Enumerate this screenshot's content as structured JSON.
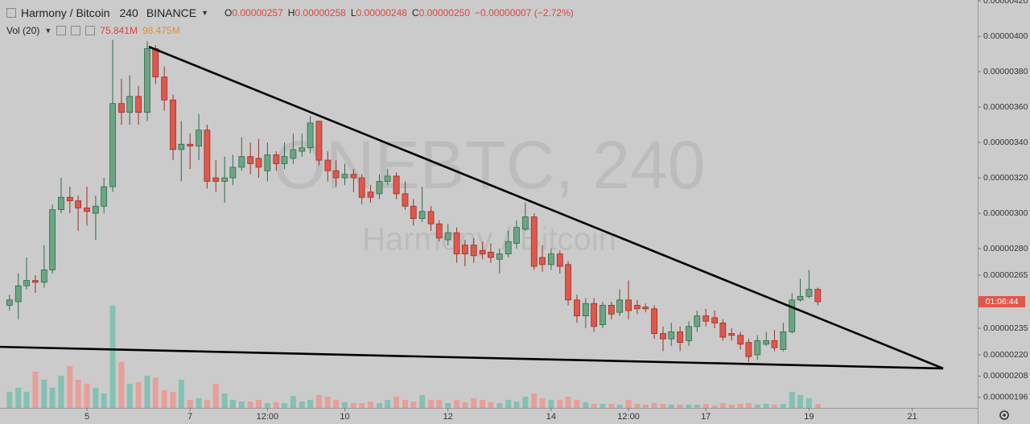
{
  "header": {
    "symbol": "Harmony / Bitcoin",
    "interval": "240",
    "exchange": "BINANCE",
    "ohlc": [
      {
        "key": "O",
        "value": "0.00000257"
      },
      {
        "key": "H",
        "value": "0.00000258"
      },
      {
        "key": "L",
        "value": "0.00000248"
      },
      {
        "key": "C",
        "value": "0.00000250"
      }
    ],
    "change": "−0.00000007 (−2.72%)"
  },
  "volume_legend": {
    "title": "Vol (20)",
    "last": "75.841M",
    "ma": "98.475M"
  },
  "price_tag": "01:06:44",
  "chart_data": {
    "type": "candlestick",
    "watermark": {
      "title": "ONEBTC, 240",
      "subtitle": "Harmony / Bitcoin"
    },
    "x": [
      3.5,
      3.67,
      3.83,
      4,
      4.17,
      4.33,
      4.5,
      4.67,
      4.83,
      5,
      5.17,
      5.33,
      5.5,
      5.67,
      5.83,
      6,
      6.17,
      6.33,
      6.5,
      6.67,
      6.83,
      7,
      7.17,
      7.33,
      7.5,
      7.67,
      7.83,
      8,
      8.17,
      8.33,
      8.5,
      8.67,
      8.83,
      9,
      9.17,
      9.33,
      9.5,
      9.67,
      9.83,
      10,
      10.17,
      10.33,
      10.5,
      10.67,
      10.83,
      11,
      11.17,
      11.33,
      11.5,
      11.67,
      11.83,
      12,
      12.17,
      12.33,
      12.5,
      12.67,
      12.83,
      13,
      13.17,
      13.33,
      13.5,
      13.67,
      13.83,
      14,
      14.17,
      14.33,
      14.5,
      14.67,
      14.83,
      15,
      15.17,
      15.33,
      15.5,
      15.67,
      15.83,
      16,
      16.17,
      16.33,
      16.5,
      16.67,
      16.83,
      17,
      17.17,
      17.33,
      17.5,
      17.67,
      17.83,
      18,
      18.17,
      18.33,
      18.5,
      18.67,
      18.83,
      19,
      19.17
    ],
    "open": [
      2.48e-06,
      2.5e-06,
      2.59e-06,
      2.62e-06,
      2.61e-06,
      2.68e-06,
      3.02e-06,
      3.09e-06,
      3.07e-06,
      3.03e-06,
      3e-06,
      3.04e-06,
      3.15e-06,
      3.62e-06,
      3.57e-06,
      3.66e-06,
      3.57e-06,
      3.93e-06,
      3.77e-06,
      3.64e-06,
      3.36e-06,
      3.39e-06,
      3.38e-06,
      3.47e-06,
      3.2e-06,
      3.18e-06,
      3.2e-06,
      3.26e-06,
      3.32e-06,
      3.31e-06,
      3.24e-06,
      3.33e-06,
      3.28e-06,
      3.31e-06,
      3.35e-06,
      3.37e-06,
      3.52e-06,
      3.3e-06,
      3.24e-06,
      3.2e-06,
      3.22e-06,
      3.2e-06,
      3.12e-06,
      3.11e-06,
      3.18e-06,
      3.21e-06,
      3.11e-06,
      3.04e-06,
      2.97e-06,
      3.01e-06,
      2.94e-06,
      2.85e-06,
      2.89e-06,
      2.82e-06,
      2.82e-06,
      2.79e-06,
      2.78e-06,
      2.74e-06,
      2.77e-06,
      2.83e-06,
      2.91e-06,
      2.98e-06,
      2.75e-06,
      2.71e-06,
      2.77e-06,
      2.71e-06,
      2.51e-06,
      2.42e-06,
      2.49e-06,
      2.37e-06,
      2.48e-06,
      2.44e-06,
      2.51e-06,
      2.48e-06,
      2.47e-06,
      2.46e-06,
      2.32e-06,
      2.29e-06,
      2.33e-06,
      2.28e-06,
      2.36e-06,
      2.42e-06,
      2.41e-06,
      2.38e-06,
      2.32e-06,
      2.31e-06,
      2.27e-06,
      2.2e-06,
      2.26e-06,
      2.28e-06,
      2.23e-06,
      2.33e-06,
      2.51e-06,
      2.53e-06,
      2.57e-06
    ],
    "high": [
      2.54e-06,
      2.66e-06,
      2.75e-06,
      2.65e-06,
      2.82e-06,
      3.05e-06,
      3.2e-06,
      3.15e-06,
      3.1e-06,
      3.15e-06,
      3.1e-06,
      3.2e-06,
      3.98e-06,
      3.76e-06,
      3.78e-06,
      3.72e-06,
      3.97e-06,
      3.95e-06,
      3.83e-06,
      3.67e-06,
      3.52e-06,
      3.45e-06,
      3.56e-06,
      3.5e-06,
      3.3e-06,
      3.32e-06,
      3.33e-06,
      3.43e-06,
      3.4e-06,
      3.42e-06,
      3.4e-06,
      3.35e-06,
      3.4e-06,
      3.45e-06,
      3.45e-06,
      3.55e-06,
      3.52e-06,
      3.35e-06,
      3.3e-06,
      3.28e-06,
      3.25e-06,
      3.22e-06,
      3.16e-06,
      3.22e-06,
      3.25e-06,
      3.23e-06,
      3.18e-06,
      3.08e-06,
      3.15e-06,
      3.04e-06,
      2.96e-06,
      2.94e-06,
      2.92e-06,
      2.85e-06,
      2.86e-06,
      2.84e-06,
      2.83e-06,
      2.8e-06,
      2.9e-06,
      2.96e-06,
      3.06e-06,
      3e-06,
      2.82e-06,
      2.8e-06,
      2.79e-06,
      2.73e-06,
      2.54e-06,
      2.52e-06,
      2.52e-06,
      2.5e-06,
      2.5e-06,
      2.57e-06,
      2.62e-06,
      2.51e-06,
      2.49e-06,
      2.48e-06,
      2.36e-06,
      2.38e-06,
      2.36e-06,
      2.39e-06,
      2.45e-06,
      2.46e-06,
      2.45e-06,
      2.4e-06,
      2.35e-06,
      2.33e-06,
      2.29e-06,
      2.31e-06,
      2.33e-06,
      2.34e-06,
      2.38e-06,
      2.55e-06,
      2.63e-06,
      2.68e-06,
      2.58e-06
    ],
    "low": [
      2.45e-06,
      2.4e-06,
      2.57e-06,
      2.55e-06,
      2.58e-06,
      2.66e-06,
      3e-06,
      3e-06,
      2.9e-06,
      2.93e-06,
      2.85e-06,
      3e-06,
      3.12e-06,
      3.5e-06,
      3.5e-06,
      3.5e-06,
      3.52e-06,
      3.73e-06,
      3.58e-06,
      3.3e-06,
      3.18e-06,
      3.25e-06,
      3.3e-06,
      3.14e-06,
      3.12e-06,
      3.06e-06,
      3.16e-06,
      3.24e-06,
      3.22e-06,
      3.2e-06,
      3.18e-06,
      3.24e-06,
      3.25e-06,
      3.28e-06,
      3.32e-06,
      3.34e-06,
      3.27e-06,
      3.18e-06,
      3.15e-06,
      3.16e-06,
      3.12e-06,
      3.05e-06,
      3.06e-06,
      3.08e-06,
      3.16e-06,
      3.08e-06,
      3.02e-06,
      2.93e-06,
      2.95e-06,
      2.9e-06,
      2.84e-06,
      2.82e-06,
      2.72e-06,
      2.7e-06,
      2.72e-06,
      2.74e-06,
      2.72e-06,
      2.66e-06,
      2.75e-06,
      2.8e-06,
      2.9e-06,
      2.68e-06,
      2.67e-06,
      2.68e-06,
      2.66e-06,
      2.48e-06,
      2.38e-06,
      2.35e-06,
      2.33e-06,
      2.35e-06,
      2.4e-06,
      2.42e-06,
      2.4e-06,
      2.43e-06,
      2.44e-06,
      2.29e-06,
      2.22e-06,
      2.25e-06,
      2.22e-06,
      2.25e-06,
      2.33e-06,
      2.36e-06,
      2.35e-06,
      2.28e-06,
      2.28e-06,
      2.23e-06,
      2.16e-06,
      2.17e-06,
      2.25e-06,
      2.22e-06,
      2.22e-06,
      2.32e-06,
      2.5e-06,
      2.52e-06,
      2.48e-06
    ],
    "close": [
      2.51e-06,
      2.59e-06,
      2.62e-06,
      2.61e-06,
      2.68e-06,
      3.02e-06,
      3.09e-06,
      3.07e-06,
      3.03e-06,
      3.01e-06,
      3.04e-06,
      3.15e-06,
      3.62e-06,
      3.57e-06,
      3.66e-06,
      3.57e-06,
      3.93e-06,
      3.77e-06,
      3.64e-06,
      3.36e-06,
      3.39e-06,
      3.38e-06,
      3.47e-06,
      3.18e-06,
      3.18e-06,
      3.2e-06,
      3.26e-06,
      3.32e-06,
      3.28e-06,
      3.26e-06,
      3.33e-06,
      3.28e-06,
      3.32e-06,
      3.36e-06,
      3.37e-06,
      3.51e-06,
      3.3e-06,
      3.24e-06,
      3.2e-06,
      3.22e-06,
      3.2e-06,
      3.09e-06,
      3.09e-06,
      3.18e-06,
      3.21e-06,
      3.11e-06,
      3.04e-06,
      2.97e-06,
      3.01e-06,
      2.94e-06,
      2.86e-06,
      2.89e-06,
      2.77e-06,
      2.77e-06,
      2.76e-06,
      2.77e-06,
      2.75e-06,
      2.77e-06,
      2.84e-06,
      2.92e-06,
      2.98e-06,
      2.7e-06,
      2.71e-06,
      2.77e-06,
      2.7e-06,
      2.51e-06,
      2.42e-06,
      2.49e-06,
      2.36e-06,
      2.48e-06,
      2.43e-06,
      2.51e-06,
      2.45e-06,
      2.46e-06,
      2.46e-06,
      2.32e-06,
      2.29e-06,
      2.33e-06,
      2.27e-06,
      2.36e-06,
      2.42e-06,
      2.39e-06,
      2.38e-06,
      2.3e-06,
      2.31e-06,
      2.26e-06,
      2.19e-06,
      2.28e-06,
      2.28e-06,
      2.24e-06,
      2.33e-06,
      2.51e-06,
      2.53e-06,
      2.57e-06,
      2.5e-06
    ],
    "up_color": "#6ba583",
    "down_color": "#e0574b",
    "volume": {
      "values": [
        316,
        395,
        316,
        711,
        553,
        395,
        632,
        822,
        553,
        474,
        395,
        284,
        2007,
        901,
        474,
        506,
        632,
        600,
        348,
        316,
        553,
        158,
        190,
        158,
        474,
        284,
        158,
        126,
        126,
        158,
        95,
        111,
        95,
        237,
        126,
        158,
        253,
        221,
        158,
        111,
        95,
        95,
        126,
        95,
        158,
        221,
        158,
        126,
        253,
        158,
        158,
        95,
        158,
        111,
        190,
        158,
        111,
        95,
        158,
        126,
        221,
        284,
        190,
        158,
        158,
        221,
        158,
        111,
        79,
        79,
        79,
        63,
        158,
        79,
        63,
        95,
        79,
        63,
        63,
        63,
        63,
        79,
        47,
        95,
        63,
        79,
        95,
        63,
        79,
        63,
        79,
        316,
        253,
        190,
        75.841
      ],
      "ylim": [
        0,
        8000
      ],
      "up_color": "#83c1b4",
      "down_color": "#e89e99"
    },
    "xlim": [
      3.315,
      22.27
    ],
    "xticks": [
      5,
      7,
      {
        "value": 8.5,
        "label": "12:00"
      },
      10,
      12,
      14,
      {
        "value": 15.5,
        "label": "12:00"
      },
      17,
      19,
      21
    ],
    "ylim": [
      1.9e-06,
      4.205e-06
    ],
    "yticks": [
      {
        "value": 4.2e-06,
        "label": "0.00000420"
      },
      {
        "value": 4e-06,
        "label": "0.00000400"
      },
      {
        "value": 3.8e-06,
        "label": "0.00000380"
      },
      {
        "value": 3.6e-06,
        "label": "0.00000360"
      },
      {
        "value": 3.4e-06,
        "label": "0.00000340"
      },
      {
        "value": 3.2e-06,
        "label": "0.00000320"
      },
      {
        "value": 3e-06,
        "label": "0.00000300"
      },
      {
        "value": 2.8e-06,
        "label": "0.00000280"
      },
      {
        "value": 2.65e-06,
        "label": "0.00000265"
      },
      {
        "value": 2.35e-06,
        "label": "0.00000235"
      },
      {
        "value": 2.2e-06,
        "label": "0.00000220"
      },
      {
        "value": 2.08e-06,
        "label": "0.00000208"
      },
      {
        "value": 1.96e-06,
        "label": "0.00000196"
      }
    ],
    "trendlines": [
      {
        "points": [
          [
            6.2,
            3.941e-06
          ],
          [
            21.6,
            2.123e-06
          ]
        ]
      },
      {
        "points": [
          [
            3.315,
            2.245e-06
          ],
          [
            21.6,
            2.123e-06
          ]
        ]
      }
    ]
  }
}
